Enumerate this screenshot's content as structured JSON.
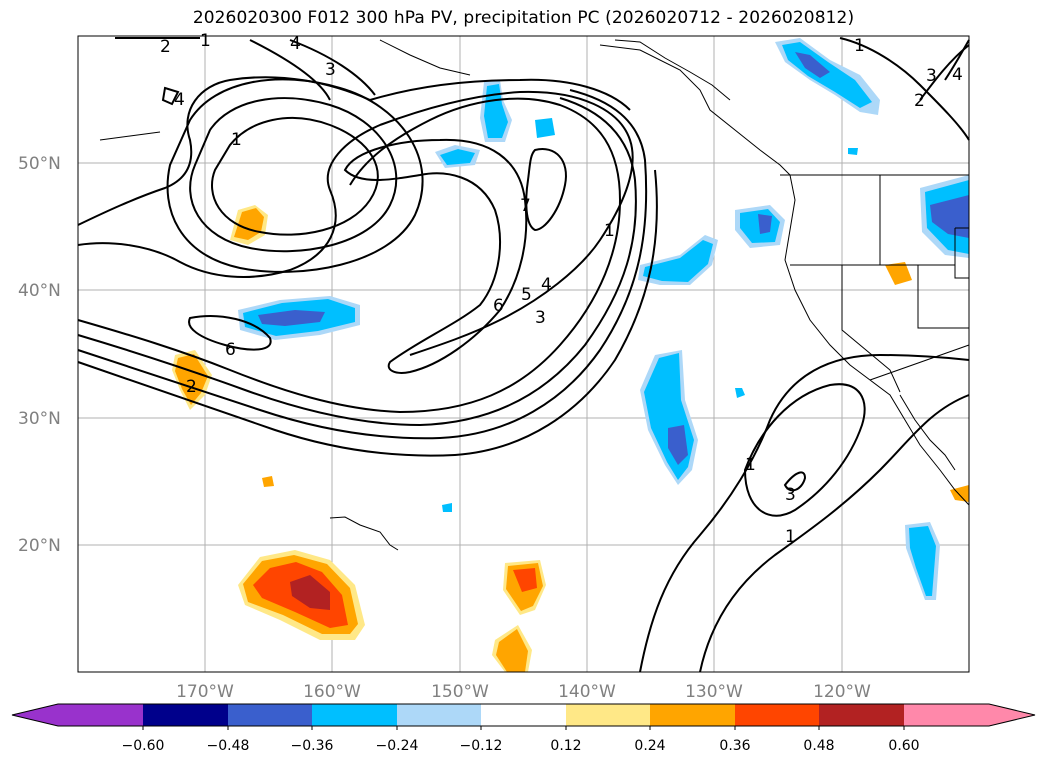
{
  "title": "2026020300 F012 300 hPa PV, precipitation PC (2026020712 - 2026020812)",
  "map": {
    "lat_labels": [
      "50°N",
      "40°N",
      "30°N",
      "20°N"
    ],
    "lon_labels": [
      "170°W",
      "160°W",
      "150°W",
      "140°W",
      "130°W",
      "120°W"
    ],
    "pv_contour_labels": [
      "2",
      "1",
      "4",
      "3",
      "4",
      "1",
      "7",
      "6",
      "5",
      "4",
      "3",
      "1",
      "6",
      "2",
      "1",
      "3",
      "1",
      "1",
      "2",
      "3",
      "4"
    ]
  },
  "colorbar": {
    "tick_labels": [
      "−0.60",
      "−0.48",
      "−0.36",
      "−0.24",
      "−0.12",
      "0.12",
      "0.24",
      "0.36",
      "0.48",
      "0.60"
    ],
    "colors": {
      "under": "#9932cc",
      "c1": "#00008b",
      "c2": "#3a5fcd",
      "c3": "#00bfff",
      "c4": "#add8f8",
      "c5": "#ffffff",
      "c6": "#ffe887",
      "c7": "#ffa500",
      "c8": "#ff4500",
      "c9": "#b22222",
      "over": "#ff88aa"
    }
  }
}
